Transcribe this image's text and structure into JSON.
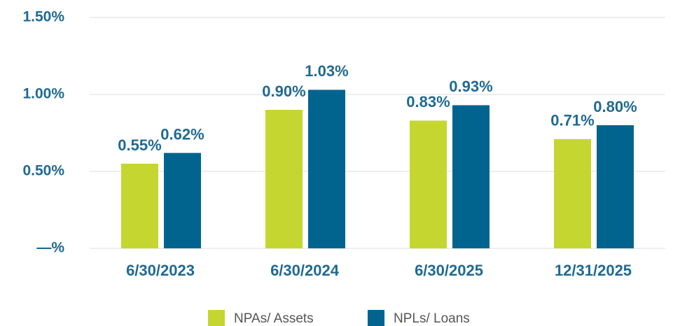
{
  "chart_data": {
    "type": "bar",
    "categories": [
      "6/30/2023",
      "6/30/2024",
      "6/30/2025",
      "12/31/2025"
    ],
    "series": [
      {
        "name": "NPAs/ Assets",
        "color": "#c5d630",
        "values": [
          0.55,
          0.9,
          0.83,
          0.71
        ],
        "value_labels": [
          "0.55%",
          "0.90%",
          "0.83%",
          "0.71%"
        ]
      },
      {
        "name": "NPLs/ Loans",
        "color": "#00648f",
        "values": [
          0.62,
          1.03,
          0.93,
          0.8
        ],
        "value_labels": [
          "0.62%",
          "1.03%",
          "0.93%",
          "0.80%"
        ]
      }
    ],
    "ylim": [
      0,
      1.5
    ],
    "yticks": [
      {
        "value": 0,
        "label": "—%"
      },
      {
        "value": 0.5,
        "label": "0.50%"
      },
      {
        "value": 1.0,
        "label": "1.00%"
      },
      {
        "value": 1.5,
        "label": "1.50%"
      }
    ],
    "grid": true
  }
}
